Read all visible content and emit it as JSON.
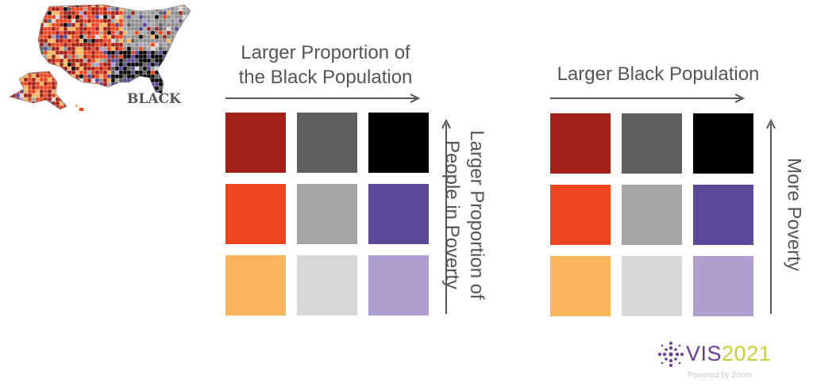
{
  "map": {
    "label": "BLACK",
    "colors": [
      "#a32116",
      "#ed4520",
      "#f8b55b",
      "#5f5f5f",
      "#a5a5a5",
      "#d8d8d8",
      "#000000",
      "#5b4998",
      "#ae9fcf",
      "#8e8e8e"
    ]
  },
  "left_legend": {
    "x_title_line1": "Larger Proportion of",
    "x_title_line2": "the Black Population",
    "y_title_line1": "Larger Proportion of",
    "y_title_line2": "People in Poverty",
    "rows": [
      [
        "#a32116",
        "#5f5f5f",
        "#000000"
      ],
      [
        "#ed4520",
        "#a5a5a5",
        "#5b4998"
      ],
      [
        "#f8b55b",
        "#d8d8d8",
        "#ae9fcf"
      ]
    ]
  },
  "right_legend": {
    "x_title": "Larger Black Population",
    "y_title": "More Poverty",
    "rows": [
      [
        "#a32116",
        "#5f5f5f",
        "#000000"
      ],
      [
        "#ed4520",
        "#a5a5a5",
        "#5b4998"
      ],
      [
        "#f8b55b",
        "#d8d8d8",
        "#ae9fcf"
      ]
    ]
  },
  "logo": {
    "word": "VIS",
    "year": "2021",
    "powered": "Powered by Zoom",
    "mark_color": "#6b3d97"
  }
}
